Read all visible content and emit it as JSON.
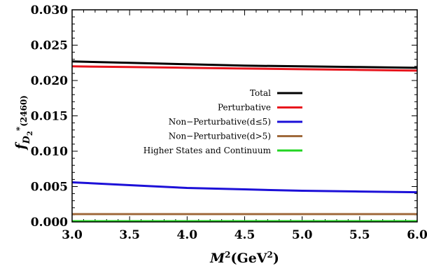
{
  "chart_data": {
    "type": "line",
    "xlabel": {
      "base": "M",
      "sup": "2",
      "unit_open": "(GeV",
      "unit_sup": "2",
      "unit_close": ")"
    },
    "ylabel": {
      "base": "f",
      "sub": "D",
      "subsub": "2",
      "sup": "*",
      "tail": "(2460)"
    },
    "xlim": [
      3.0,
      6.0
    ],
    "ylim": [
      0.0,
      0.03
    ],
    "xticks": [
      "3.0",
      "3.5",
      "4.0",
      "4.5",
      "5.0",
      "5.5",
      "6.0"
    ],
    "yticks": [
      "0.000",
      "0.005",
      "0.010",
      "0.015",
      "0.020",
      "0.025",
      "0.030"
    ],
    "legend_position": "center-right",
    "series": [
      {
        "name": "Total",
        "color": "#000000",
        "x": [
          3.0,
          3.5,
          4.0,
          4.5,
          5.0,
          5.5,
          6.0
        ],
        "y": [
          0.0227,
          0.0225,
          0.0223,
          0.0221,
          0.022,
          0.0219,
          0.0218
        ]
      },
      {
        "name": "Perturbative",
        "color": "#e8141c",
        "x": [
          3.0,
          3.5,
          4.0,
          4.5,
          5.0,
          5.5,
          6.0
        ],
        "y": [
          0.022,
          0.0219,
          0.0218,
          0.0217,
          0.0216,
          0.0215,
          0.0214
        ]
      },
      {
        "name": "Non−Perturbative(d≤5)",
        "color": "#1c10d8",
        "x": [
          3.0,
          3.5,
          4.0,
          4.5,
          5.0,
          5.5,
          6.0
        ],
        "y": [
          0.0056,
          0.0052,
          0.0048,
          0.0046,
          0.0044,
          0.0043,
          0.0042
        ]
      },
      {
        "name": "Non−Perturbative(d>5)",
        "color": "#a06a3c",
        "x": [
          3.0,
          3.5,
          4.0,
          4.5,
          5.0,
          5.5,
          6.0
        ],
        "y": [
          0.0011,
          0.0011,
          0.0011,
          0.0011,
          0.0011,
          0.0011,
          0.0011
        ]
      },
      {
        "name": "Higher States and Continuum",
        "color": "#22d422",
        "x": [
          3.0,
          3.5,
          4.0,
          4.5,
          5.0,
          5.5,
          6.0
        ],
        "y": [
          0.0001,
          0.0001,
          0.0001,
          0.0001,
          0.0001,
          0.0001,
          0.0001
        ]
      }
    ]
  }
}
